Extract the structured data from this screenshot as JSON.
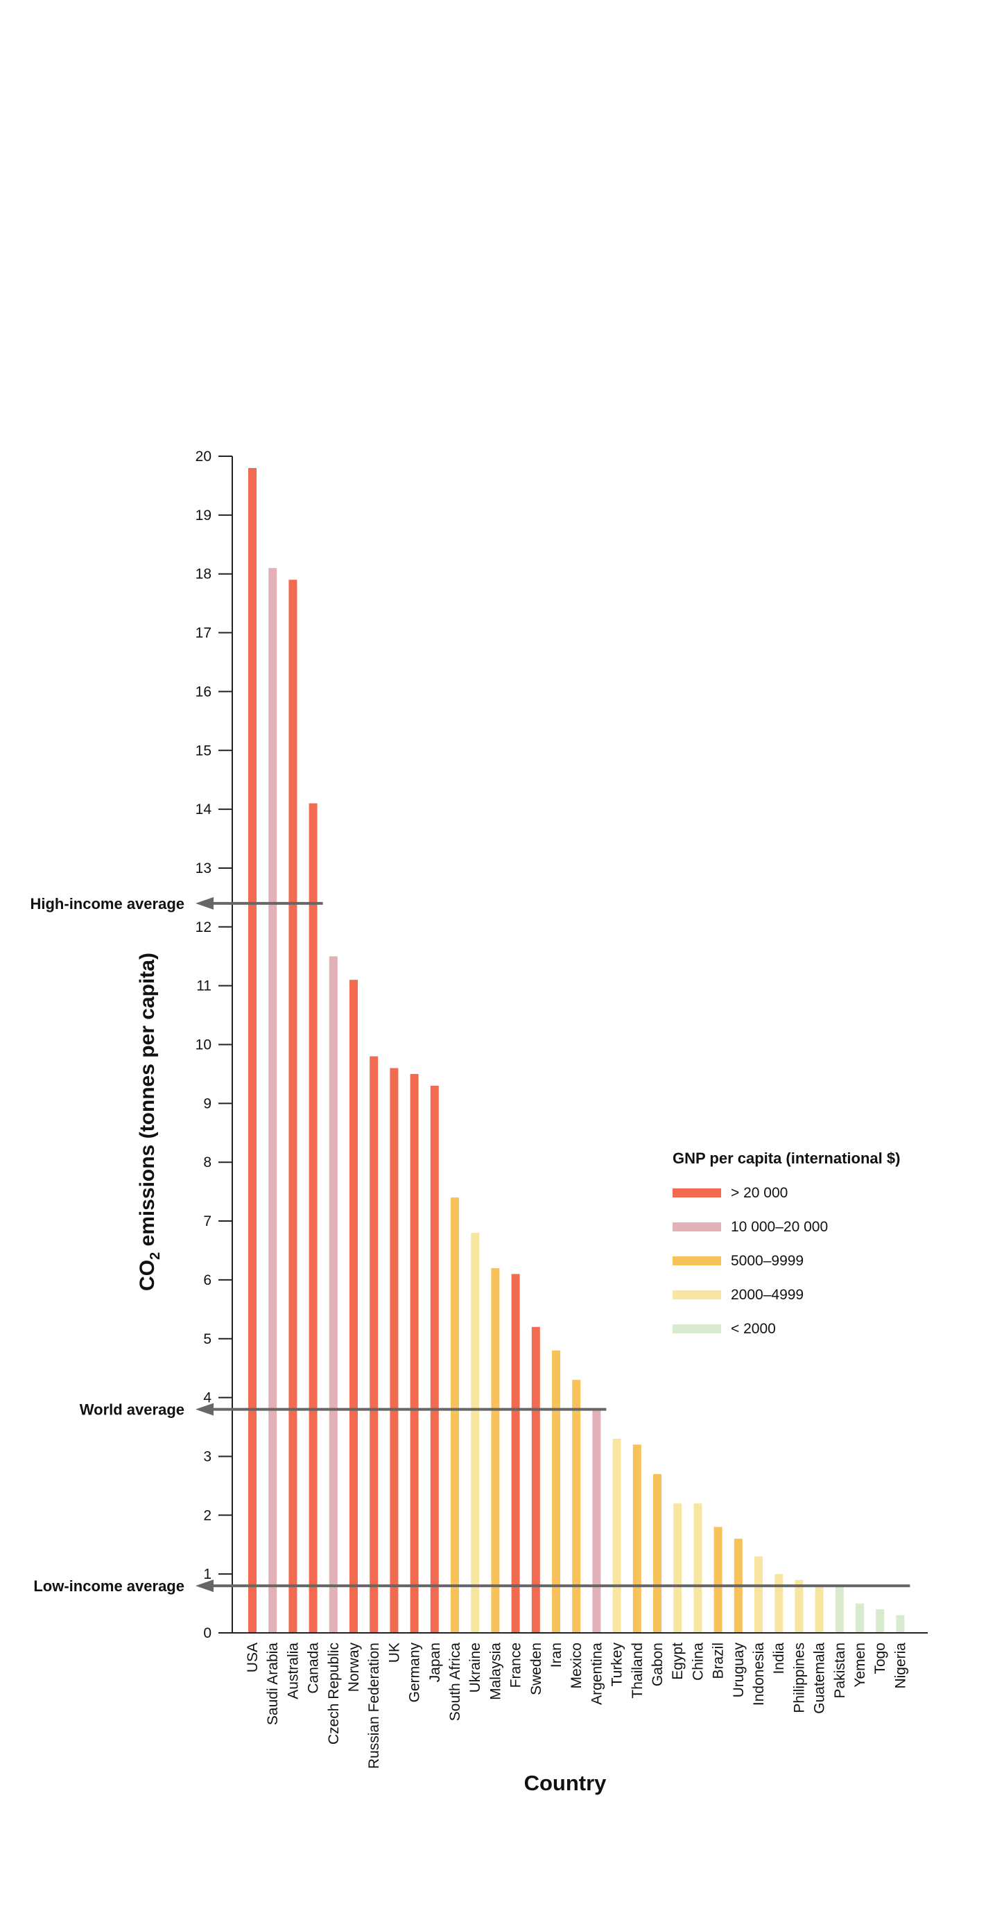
{
  "chart_data": {
    "type": "bar",
    "xlabel": "Country",
    "ylabel_main": "CO",
    "ylabel_sub": "2",
    "ylabel_rest": " emissions (tonnes per capita)",
    "ylim": [
      0,
      20
    ],
    "yticks": [
      0,
      1,
      2,
      3,
      4,
      5,
      6,
      7,
      8,
      9,
      10,
      11,
      12,
      13,
      14,
      15,
      16,
      17,
      18,
      19,
      20
    ],
    "categories": [
      "USA",
      "Saudi Arabia",
      "Australia",
      "Canada",
      "Czech Republic",
      "Norway",
      "Russian Federation",
      "UK",
      "Germany",
      "Japan",
      "South Africa",
      "Ukraine",
      "Malaysia",
      "France",
      "Sweden",
      "Iran",
      "Mexico",
      "Argentina",
      "Turkey",
      "Thailand",
      "Gabon",
      "Egypt",
      "China",
      "Brazil",
      "Uruguay",
      "Indonesia",
      "India",
      "Philippines",
      "Guatemala",
      "Pakistan",
      "Yemen",
      "Togo",
      "Nigeria"
    ],
    "values": [
      19.8,
      18.1,
      17.9,
      14.1,
      11.5,
      11.1,
      9.8,
      9.6,
      9.5,
      9.3,
      7.4,
      6.8,
      6.2,
      6.1,
      5.2,
      4.8,
      4.3,
      3.8,
      3.3,
      3.2,
      2.7,
      2.2,
      2.2,
      1.8,
      1.6,
      1.3,
      1.0,
      0.9,
      0.8,
      0.8,
      0.5,
      0.4,
      0.3
    ],
    "income_group": [
      0,
      1,
      0,
      0,
      1,
      0,
      0,
      0,
      0,
      0,
      2,
      3,
      2,
      0,
      0,
      2,
      2,
      1,
      3,
      2,
      2,
      3,
      3,
      2,
      2,
      3,
      3,
      3,
      3,
      4,
      4,
      4,
      4
    ],
    "legend": {
      "title": "GNP per capita (international $)",
      "position": "right",
      "entries": [
        {
          "label": "> 20 000",
          "color": "#f26a4f"
        },
        {
          "label": "10 000–20 000",
          "color": "#e2b1b8"
        },
        {
          "label": "5000–9999",
          "color": "#f8c25a"
        },
        {
          "label": "2000–4999",
          "color": "#f8e6a0"
        },
        {
          "label": "< 2000",
          "color": "#d8ebcf"
        }
      ]
    },
    "reference_lines": [
      {
        "label": "High-income average",
        "value": 12.4,
        "extends_to_category": "Canada"
      },
      {
        "label": "World average",
        "value": 3.8,
        "extends_to_category": "Argentina"
      },
      {
        "label": "Low-income average",
        "value": 0.8,
        "extends_to_category": "Nigeria"
      }
    ]
  }
}
